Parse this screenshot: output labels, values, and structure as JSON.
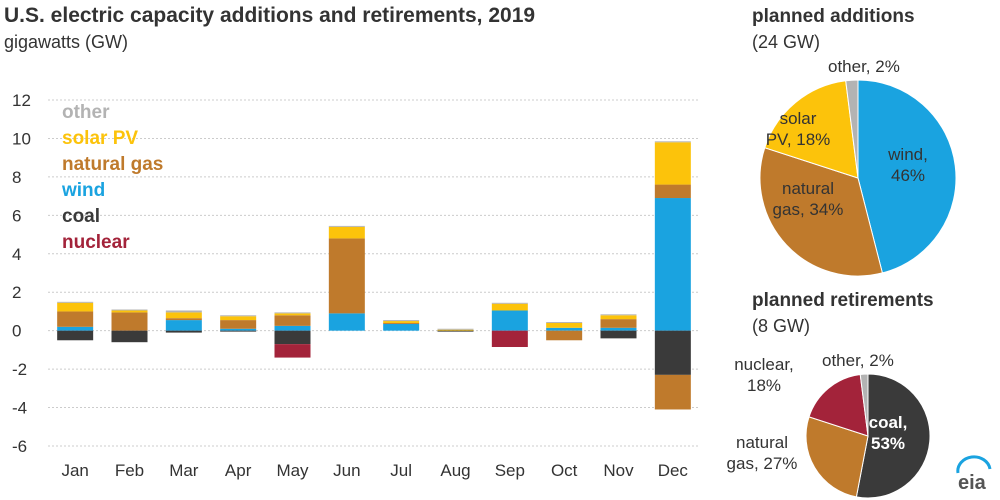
{
  "title": "U.S. electric capacity additions and retirements, 2019",
  "subtitle": "gigawatts (GW)",
  "logo_text": "eia",
  "colors": {
    "other": "#b3b3b3",
    "solar": "#fcc30b",
    "natural_gas": "#bf7a2c",
    "wind": "#1aa3e0",
    "coal": "#3a3a3a",
    "nuclear": "#a3233a",
    "grid": "#cccccc"
  },
  "legend": [
    {
      "name": "other",
      "key": "other"
    },
    {
      "name": "solar PV",
      "key": "solar"
    },
    {
      "name": "natural gas",
      "key": "natural_gas"
    },
    {
      "name": "wind",
      "key": "wind"
    },
    {
      "name": "coal",
      "key": "coal"
    },
    {
      "name": "nuclear",
      "key": "nuclear"
    }
  ],
  "chart_data": [
    {
      "type": "bar",
      "stacked": true,
      "categories": [
        "Jan",
        "Feb",
        "Mar",
        "Apr",
        "May",
        "Jun",
        "Jul",
        "Aug",
        "Sep",
        "Oct",
        "Nov",
        "Dec"
      ],
      "ylim": [
        -6,
        12
      ],
      "yticks": [
        12,
        10,
        8,
        6,
        4,
        2,
        0,
        -2,
        -4,
        -6
      ],
      "grid": true,
      "additions": [
        {
          "name": "wind",
          "key": "wind",
          "values": [
            0.2,
            0.0,
            0.55,
            0.1,
            0.25,
            0.9,
            0.35,
            0.0,
            1.05,
            0.15,
            0.15,
            6.9
          ]
        },
        {
          "name": "natural gas",
          "key": "natural_gas",
          "values": [
            0.8,
            0.95,
            0.1,
            0.45,
            0.55,
            3.9,
            0.05,
            0.0,
            0.0,
            0.0,
            0.45,
            0.7
          ]
        },
        {
          "name": "solar PV",
          "key": "solar",
          "values": [
            0.45,
            0.1,
            0.3,
            0.2,
            0.1,
            0.6,
            0.1,
            0.05,
            0.35,
            0.25,
            0.2,
            2.2
          ]
        },
        {
          "name": "other",
          "key": "other",
          "values": [
            0.05,
            0.05,
            0.1,
            0.05,
            0.05,
            0.05,
            0.05,
            0.05,
            0.05,
            0.05,
            0.05,
            0.05
          ]
        }
      ],
      "retirements": [
        {
          "name": "coal",
          "key": "coal",
          "values": [
            -0.5,
            -0.6,
            -0.1,
            -0.05,
            -0.7,
            0.0,
            0.0,
            -0.05,
            0.0,
            0.0,
            -0.4,
            -2.3
          ]
        },
        {
          "name": "natural gas",
          "key": "natural_gas",
          "values": [
            0.0,
            0.0,
            0.0,
            0.0,
            0.0,
            0.0,
            0.0,
            0.0,
            0.0,
            -0.5,
            0.0,
            -1.8
          ]
        },
        {
          "name": "nuclear",
          "key": "nuclear",
          "values": [
            0.0,
            0.0,
            0.0,
            0.0,
            -0.7,
            0.0,
            0.0,
            0.0,
            -0.85,
            0.0,
            0.0,
            0.0
          ]
        }
      ]
    },
    {
      "type": "pie",
      "title": "planned additions",
      "subtitle": "(24 GW)",
      "slices": [
        {
          "name": "wind",
          "key": "wind",
          "value": 46,
          "label": [
            "wind,",
            "46%"
          ]
        },
        {
          "name": "natural gas",
          "key": "natural_gas",
          "value": 34,
          "label": [
            "natural",
            "gas, 34%"
          ]
        },
        {
          "name": "solar PV",
          "key": "solar",
          "value": 18,
          "label": [
            "solar",
            "PV, 18%"
          ]
        },
        {
          "name": "other",
          "key": "other",
          "value": 2,
          "label": [
            "other, 2%"
          ]
        }
      ]
    },
    {
      "type": "pie",
      "title": "planned retirements",
      "subtitle": "(8 GW)",
      "slices": [
        {
          "name": "coal",
          "key": "coal",
          "value": 53,
          "label": [
            "coal,",
            "53%"
          ]
        },
        {
          "name": "natural gas",
          "key": "natural_gas",
          "value": 27,
          "label": [
            "natural",
            "gas, 27%"
          ]
        },
        {
          "name": "nuclear",
          "key": "nuclear",
          "value": 18,
          "label": [
            "nuclear,",
            "18%"
          ]
        },
        {
          "name": "other",
          "key": "other",
          "value": 2,
          "label": [
            "other, 2%"
          ]
        }
      ]
    }
  ]
}
